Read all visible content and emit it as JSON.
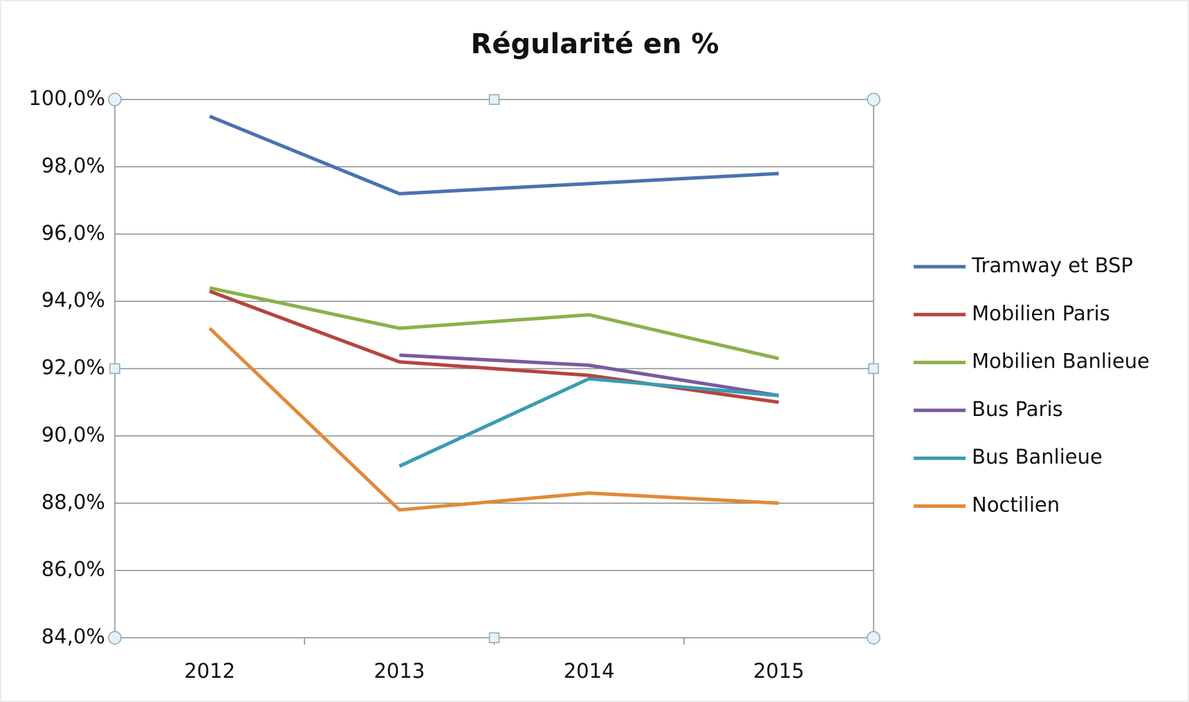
{
  "chart_data": {
    "type": "line",
    "title": "Régularité en %",
    "categories": [
      "2012",
      "2013",
      "2014",
      "2015"
    ],
    "series": [
      {
        "name": "Tramway et BSP",
        "color": "#4a72b0",
        "values": [
          99.5,
          97.2,
          97.5,
          97.8
        ]
      },
      {
        "name": "Mobilien Paris",
        "color": "#b5443f",
        "values": [
          94.3,
          92.2,
          91.8,
          91.0
        ]
      },
      {
        "name": "Mobilien Banlieue",
        "color": "#8cb04a",
        "values": [
          94.4,
          93.2,
          93.6,
          92.3
        ]
      },
      {
        "name": "Bus Paris",
        "color": "#7a5a9e",
        "values": [
          null,
          92.4,
          92.1,
          91.2
        ]
      },
      {
        "name": "Bus Banlieue",
        "color": "#3a9bb3",
        "values": [
          null,
          89.1,
          91.7,
          91.2
        ]
      },
      {
        "name": "Noctilien",
        "color": "#e08a3a",
        "values": [
          93.2,
          87.8,
          88.3,
          88.0
        ]
      }
    ],
    "ylim": [
      84,
      100
    ],
    "yticks": [
      {
        "value": 84,
        "label": "84,0%"
      },
      {
        "value": 86,
        "label": "86,0%"
      },
      {
        "value": 88,
        "label": "88,0%"
      },
      {
        "value": 90,
        "label": "90,0%"
      },
      {
        "value": 92,
        "label": "92,0%"
      },
      {
        "value": 94,
        "label": "94,0%"
      },
      {
        "value": 96,
        "label": "96,0%"
      },
      {
        "value": 98,
        "label": "98,0%"
      },
      {
        "value": 100,
        "label": "100,0%"
      }
    ],
    "grid": true,
    "legend": "right"
  }
}
